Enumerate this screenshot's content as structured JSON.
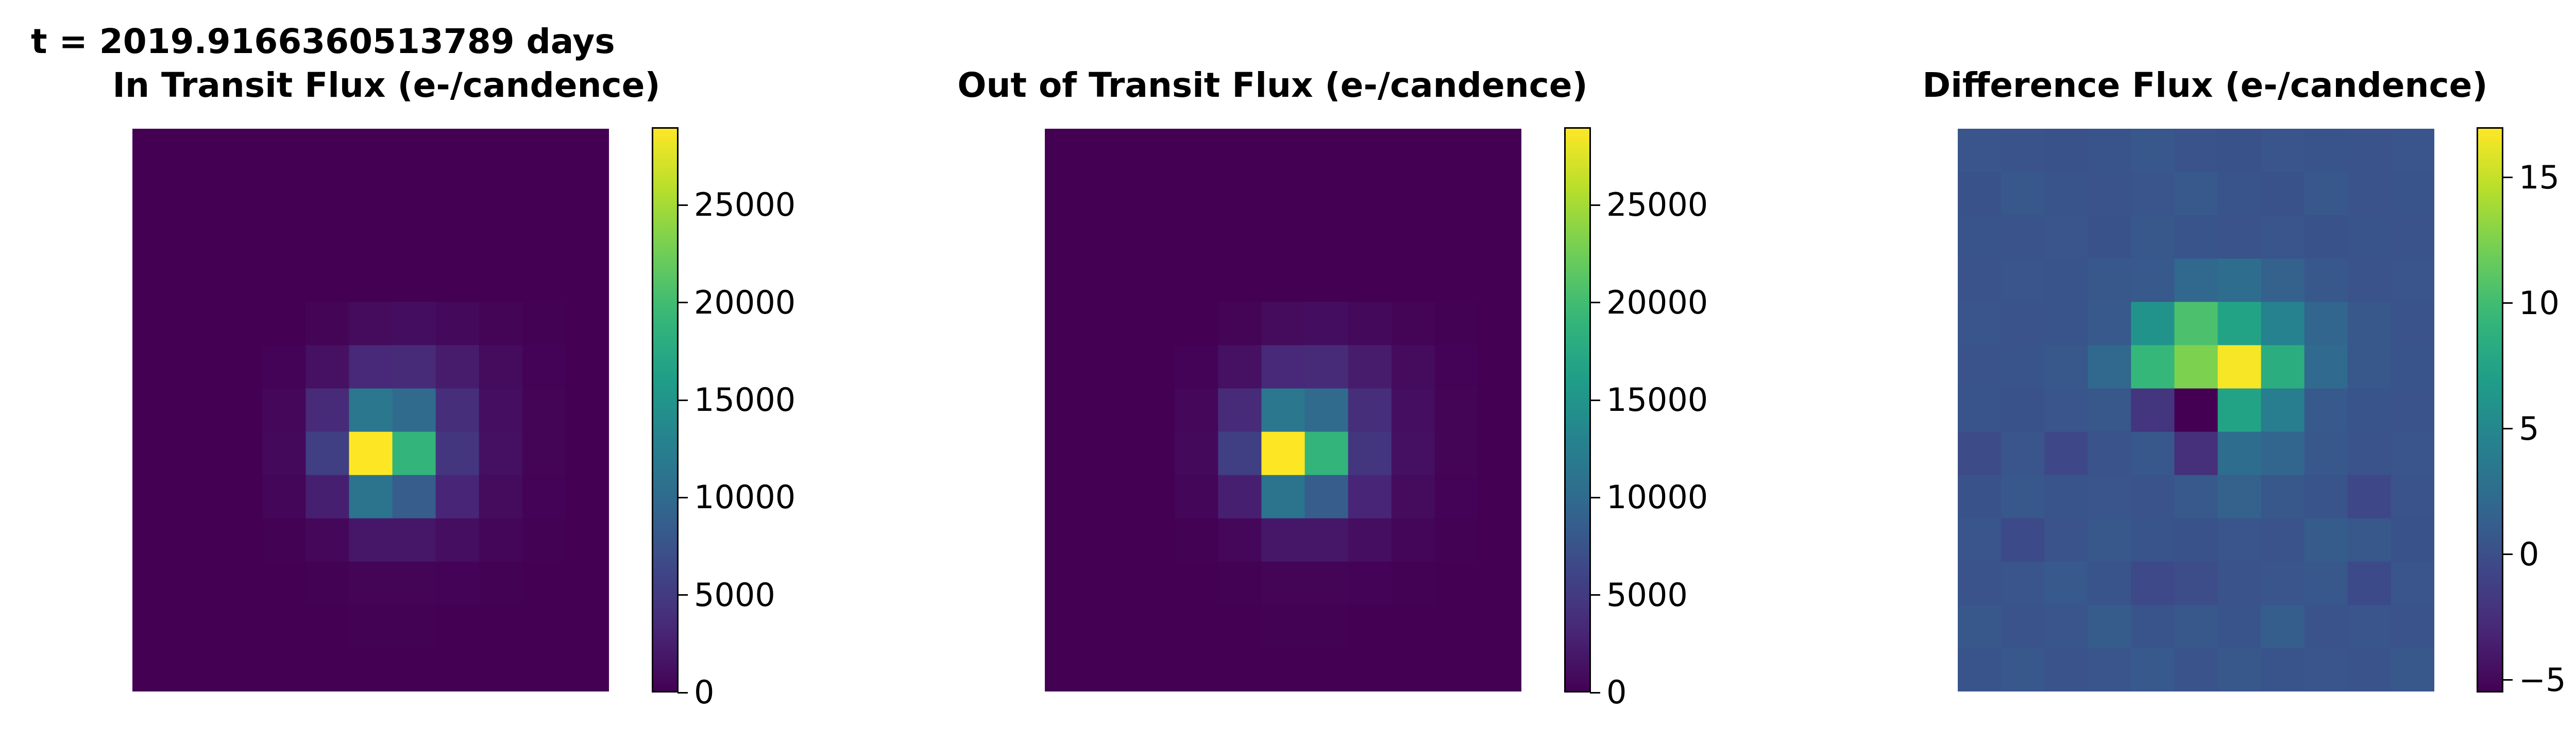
{
  "header": {
    "time_label": "t = 2019.9166360513789 days"
  },
  "chart_data": [
    {
      "type": "heatmap",
      "title": "In Transit Flux (e-/candence)",
      "colormap": "viridis",
      "vmin": 0,
      "vmax": 29000,
      "colorbar_ticks": [
        0,
        5000,
        10000,
        15000,
        20000,
        25000
      ],
      "colorbar_tick_labels": [
        "0",
        "5000",
        "10000",
        "15000",
        "20000",
        "25000"
      ],
      "grid": [
        [
          0,
          0,
          0,
          0,
          0,
          0,
          0,
          0,
          0,
          0,
          0
        ],
        [
          0,
          0,
          0,
          0,
          0,
          0,
          0,
          0,
          0,
          0,
          0
        ],
        [
          0,
          0,
          0,
          0,
          0,
          0,
          0,
          0,
          0,
          0,
          0
        ],
        [
          0,
          0,
          0,
          0,
          0,
          0,
          0,
          0,
          0,
          0,
          0
        ],
        [
          0,
          0,
          0,
          0,
          300,
          800,
          1000,
          700,
          300,
          100,
          0
        ],
        [
          0,
          0,
          0,
          200,
          1300,
          3200,
          3500,
          2200,
          800,
          200,
          0
        ],
        [
          0,
          0,
          0,
          500,
          3500,
          11500,
          10000,
          3800,
          1100,
          300,
          0
        ],
        [
          0,
          0,
          0,
          700,
          5500,
          29000,
          19000,
          4500,
          1200,
          300,
          0
        ],
        [
          0,
          0,
          0,
          400,
          2500,
          11000,
          8500,
          3000,
          800,
          200,
          0
        ],
        [
          0,
          0,
          0,
          100,
          500,
          1800,
          1800,
          1100,
          400,
          100,
          0
        ],
        [
          0,
          0,
          0,
          0,
          100,
          300,
          300,
          200,
          100,
          0,
          0
        ],
        [
          0,
          0,
          0,
          0,
          0,
          100,
          100,
          0,
          0,
          0,
          0
        ],
        [
          0,
          0,
          0,
          0,
          0,
          0,
          0,
          0,
          0,
          0,
          0
        ]
      ]
    },
    {
      "type": "heatmap",
      "title": "Out of Transit Flux (e-/candence)",
      "colormap": "viridis",
      "vmin": 0,
      "vmax": 29000,
      "colorbar_ticks": [
        0,
        5000,
        10000,
        15000,
        20000,
        25000
      ],
      "colorbar_tick_labels": [
        "0",
        "5000",
        "10000",
        "15000",
        "20000",
        "25000"
      ],
      "grid": [
        [
          0,
          0,
          0,
          0,
          0,
          0,
          0,
          0,
          0,
          0,
          0
        ],
        [
          0,
          0,
          0,
          0,
          0,
          0,
          0,
          0,
          0,
          0,
          0
        ],
        [
          0,
          0,
          0,
          0,
          0,
          0,
          0,
          0,
          0,
          0,
          0
        ],
        [
          0,
          0,
          0,
          0,
          0,
          0,
          0,
          0,
          0,
          0,
          0
        ],
        [
          0,
          0,
          0,
          0,
          300,
          800,
          1000,
          700,
          300,
          100,
          0
        ],
        [
          0,
          0,
          0,
          200,
          1300,
          3200,
          3500,
          2200,
          800,
          200,
          0
        ],
        [
          0,
          0,
          0,
          500,
          3500,
          11500,
          10000,
          3800,
          1100,
          300,
          0
        ],
        [
          0,
          0,
          0,
          700,
          5500,
          29000,
          19000,
          4500,
          1200,
          300,
          0
        ],
        [
          0,
          0,
          0,
          400,
          2500,
          11000,
          8500,
          3000,
          800,
          200,
          0
        ],
        [
          0,
          0,
          0,
          100,
          500,
          1800,
          1800,
          1100,
          400,
          100,
          0
        ],
        [
          0,
          0,
          0,
          0,
          100,
          300,
          300,
          200,
          100,
          0,
          0
        ],
        [
          0,
          0,
          0,
          0,
          0,
          100,
          100,
          0,
          0,
          0,
          0
        ],
        [
          0,
          0,
          0,
          0,
          0,
          0,
          0,
          0,
          0,
          0,
          0
        ]
      ]
    },
    {
      "type": "heatmap",
      "title": "Difference Flux (e-/candence)",
      "colormap": "viridis",
      "vmin": -5.5,
      "vmax": 17,
      "colorbar_ticks": [
        -5,
        0,
        5,
        10,
        15
      ],
      "colorbar_tick_labels": [
        "−5",
        "0",
        "5",
        "10",
        "15"
      ],
      "grid": [
        [
          0.5,
          0.3,
          0.2,
          0.4,
          0.6,
          0.3,
          0.2,
          0.5,
          0.4,
          0.3,
          0.5
        ],
        [
          0.2,
          0.6,
          0.4,
          0.3,
          0.5,
          0.8,
          0.4,
          0.2,
          0.6,
          0.3,
          0.4
        ],
        [
          0.4,
          0.3,
          0.5,
          0.2,
          0.6,
          0.4,
          0.3,
          0.5,
          0.2,
          0.4,
          0.3
        ],
        [
          0.3,
          0.5,
          0.4,
          0.6,
          0.8,
          2.0,
          2.5,
          1.5,
          0.6,
          0.3,
          0.5
        ],
        [
          0.5,
          0.3,
          0.4,
          0.8,
          6.0,
          10.5,
          7.5,
          4.5,
          1.8,
          0.6,
          0.3
        ],
        [
          0.3,
          0.4,
          0.6,
          2.0,
          9.5,
          12.5,
          16.8,
          8.5,
          2.2,
          0.6,
          0.4
        ],
        [
          0.4,
          0.2,
          0.5,
          0.6,
          -2.0,
          -5.5,
          7.5,
          4.0,
          0.8,
          0.4,
          0.3
        ],
        [
          -0.3,
          0.5,
          -0.6,
          0.3,
          0.6,
          -2.5,
          2.5,
          1.8,
          0.6,
          0.3,
          0.5
        ],
        [
          0.2,
          0.6,
          0.4,
          0.5,
          0.3,
          0.8,
          1.5,
          0.6,
          0.4,
          -0.6,
          0.3
        ],
        [
          0.5,
          -0.4,
          0.3,
          0.6,
          0.4,
          0.2,
          0.5,
          0.3,
          1.0,
          0.6,
          0.2
        ],
        [
          0.3,
          0.5,
          0.8,
          0.4,
          -0.5,
          -0.2,
          0.3,
          0.5,
          0.6,
          -0.4,
          0.5
        ],
        [
          0.6,
          0.3,
          0.5,
          1.0,
          0.4,
          0.6,
          0.4,
          1.2,
          0.3,
          0.5,
          0.3
        ],
        [
          0.4,
          0.6,
          0.3,
          0.5,
          0.8,
          0.3,
          0.6,
          0.4,
          0.5,
          0.3,
          0.6
        ]
      ]
    }
  ]
}
